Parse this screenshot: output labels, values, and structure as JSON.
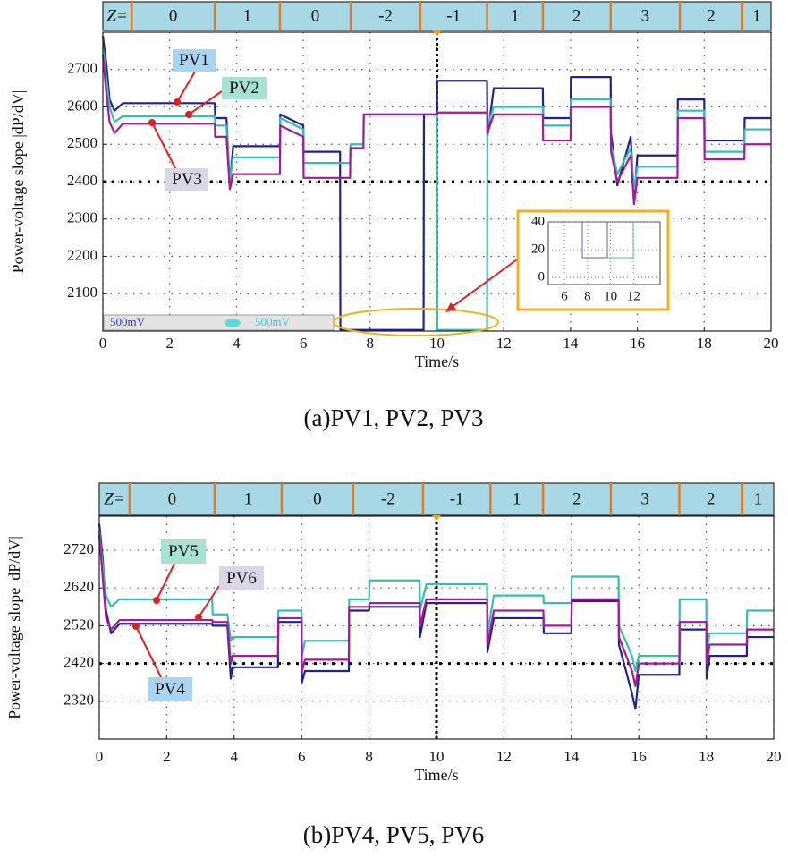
{
  "chart_data": [
    {
      "type": "line",
      "caption": "(a)PV1, PV2, PV3",
      "x_label": "Time/s",
      "y_label": "Power-voltage slope |dP/dV|",
      "xlim": [
        0,
        20
      ],
      "xticks": [
        0,
        2,
        4,
        6,
        8,
        10,
        12,
        14,
        16,
        18,
        20
      ],
      "ylim": [
        2000,
        2800
      ],
      "yticks": [
        2100,
        2200,
        2300,
        2400,
        2500,
        2600,
        2700
      ],
      "grid": true,
      "ref_lines": {
        "x": 10,
        "y": 2400
      },
      "z_label": "Z=",
      "z_values": [
        "0",
        "1",
        "0",
        "-2",
        "-1",
        "1",
        "2",
        "3",
        "2",
        "1"
      ],
      "z_boundaries": [
        0.86,
        3.35,
        5.3,
        7.42,
        9.5,
        11.5,
        13.17,
        15.2,
        17.27,
        19.14
      ],
      "channel_labels": [
        "500mV",
        "500mV"
      ],
      "inset": {
        "xlim": [
          4.6,
          14.3
        ],
        "ylim": [
          -5,
          40
        ],
        "xticks": [
          6,
          8,
          10,
          12
        ],
        "yticks": [
          0,
          20,
          40
        ]
      },
      "x": [
        0,
        0.1,
        0.2,
        0.35,
        0.6,
        3.35,
        3.36,
        3.7,
        3.8,
        3.9,
        5.3,
        5.31,
        6.0,
        6.01,
        7.1,
        7.11,
        7.4,
        7.41,
        7.8,
        7.81,
        9.6,
        9.61,
        10.0,
        10.01,
        11.5,
        11.51,
        11.7,
        13.17,
        13.18,
        14.0,
        14.01,
        15.2,
        15.21,
        15.4,
        15.8,
        15.9,
        16.0,
        17.2,
        17.21,
        18.0,
        18.01,
        19.2,
        19.21,
        20
      ],
      "series": [
        {
          "name": "PV1",
          "color": "#22228a",
          "label_color": "#a9d5f2",
          "values": [
            2790,
            2720,
            2620,
            2590,
            2610,
            2610,
            2570,
            2570,
            2390,
            2495,
            2495,
            2580,
            2550,
            2480,
            2480,
            2003,
            2003,
            2003,
            2003,
            2003,
            2003,
            2580,
            2580,
            2670,
            2670,
            2520,
            2650,
            2650,
            2570,
            2570,
            2680,
            2680,
            2530,
            2390,
            2520,
            2350,
            2470,
            2470,
            2620,
            2620,
            2510,
            2510,
            2570,
            2570
          ]
        },
        {
          "name": "PV2",
          "color": "#35bdb2",
          "label_color": "#a8e2d2",
          "values": [
            2760,
            2680,
            2600,
            2560,
            2575,
            2575,
            2550,
            2550,
            2400,
            2465,
            2465,
            2570,
            2540,
            2450,
            2450,
            2450,
            2450,
            2500,
            2500,
            2580,
            2580,
            2580,
            2580,
            2003,
            2003,
            2550,
            2600,
            2600,
            2550,
            2550,
            2620,
            2620,
            2500,
            2420,
            2490,
            2380,
            2440,
            2440,
            2590,
            2590,
            2480,
            2480,
            2540,
            2540
          ]
        },
        {
          "name": "PV3",
          "color": "#a01c98",
          "label_color": "#dad6e6",
          "values": [
            2740,
            2640,
            2560,
            2530,
            2555,
            2555,
            2520,
            2520,
            2380,
            2420,
            2420,
            2550,
            2520,
            2410,
            2410,
            2410,
            2410,
            2490,
            2490,
            2580,
            2580,
            2580,
            2580,
            2585,
            2585,
            2530,
            2580,
            2580,
            2510,
            2510,
            2600,
            2600,
            2480,
            2400,
            2470,
            2340,
            2410,
            2410,
            2570,
            2570,
            2460,
            2460,
            2500,
            2500
          ]
        }
      ]
    },
    {
      "type": "line",
      "caption": "(b)PV4, PV5, PV6",
      "x_label": "Time/s",
      "y_label": "Power-voltage slope |dP/dV|",
      "xlim": [
        0,
        20
      ],
      "xticks": [
        0,
        2,
        4,
        6,
        8,
        10,
        12,
        14,
        16,
        18,
        20
      ],
      "ylim": [
        2220,
        2810
      ],
      "yticks": [
        2320,
        2420,
        2520,
        2620,
        2720
      ],
      "grid": true,
      "ref_lines": {
        "x": 10,
        "y": 2420
      },
      "z_label": "Z=",
      "z_values": [
        "0",
        "1",
        "0",
        "-2",
        "-1",
        "1",
        "2",
        "3",
        "2",
        "1"
      ],
      "z_boundaries": [
        0.9,
        3.42,
        5.41,
        7.53,
        9.6,
        11.6,
        13.16,
        15.17,
        17.2,
        19.07
      ],
      "x": [
        0,
        0.1,
        0.2,
        0.35,
        0.6,
        3.35,
        3.36,
        3.8,
        3.9,
        3.95,
        5.3,
        5.31,
        6.0,
        6.01,
        6.1,
        7.4,
        7.41,
        8.0,
        8.01,
        9.5,
        9.51,
        9.7,
        11.5,
        11.51,
        11.7,
        13.17,
        13.18,
        14.0,
        14.01,
        15.4,
        15.41,
        15.8,
        15.9,
        16.0,
        17.2,
        17.21,
        18.0,
        18.01,
        18.1,
        19.2,
        19.21,
        20
      ],
      "series": [
        {
          "name": "PV4",
          "color": "#22228a",
          "label_color": "#a9d5f2",
          "values": [
            2790,
            2700,
            2560,
            2500,
            2525,
            2525,
            2520,
            2520,
            2380,
            2410,
            2410,
            2530,
            2530,
            2370,
            2400,
            2400,
            2560,
            2560,
            2570,
            2570,
            2490,
            2580,
            2580,
            2450,
            2540,
            2540,
            2500,
            2500,
            2585,
            2585,
            2470,
            2340,
            2300,
            2390,
            2390,
            2510,
            2510,
            2380,
            2440,
            2440,
            2490,
            2490
          ]
        },
        {
          "name": "PV5",
          "color": "#35bdb2",
          "label_color": "#a8e2d2",
          "values": [
            2770,
            2680,
            2600,
            2570,
            2590,
            2590,
            2550,
            2550,
            2480,
            2490,
            2490,
            2560,
            2560,
            2440,
            2480,
            2480,
            2590,
            2590,
            2640,
            2640,
            2560,
            2630,
            2630,
            2500,
            2600,
            2600,
            2580,
            2580,
            2650,
            2650,
            2520,
            2440,
            2400,
            2440,
            2440,
            2590,
            2590,
            2450,
            2500,
            2500,
            2560,
            2560
          ]
        },
        {
          "name": "PV6",
          "color": "#a01c98",
          "label_color": "#dad6e6",
          "values": [
            2760,
            2650,
            2540,
            2510,
            2535,
            2535,
            2530,
            2530,
            2420,
            2440,
            2440,
            2540,
            2540,
            2400,
            2430,
            2430,
            2570,
            2570,
            2580,
            2580,
            2520,
            2590,
            2590,
            2470,
            2560,
            2560,
            2520,
            2520,
            2590,
            2590,
            2490,
            2400,
            2360,
            2420,
            2420,
            2530,
            2530,
            2420,
            2470,
            2470,
            2510,
            2510
          ]
        }
      ]
    }
  ]
}
